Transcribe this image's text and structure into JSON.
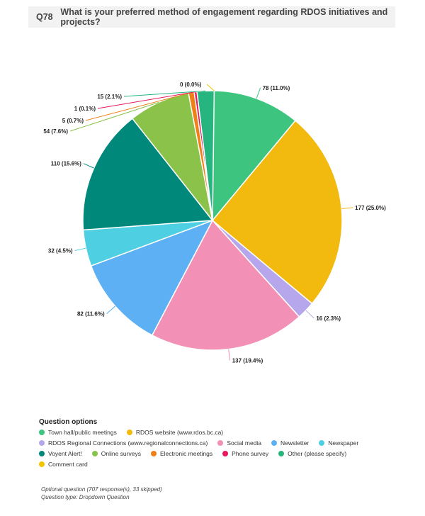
{
  "question": {
    "number": "Q78",
    "text": "What is your preferred method of engagement regarding RDOS initiatives and projects?"
  },
  "chart_data": {
    "type": "pie",
    "title": "What is your preferred method of engagement regarding RDOS initiatives and projects?",
    "slices": [
      {
        "name": "Town hall/public meetings",
        "value": 78,
        "label": "78 (11.0%)",
        "color": "#3dc47e"
      },
      {
        "name": "RDOS website (www.rdos.bc.ca)",
        "value": 177,
        "label": "177 (25.0%)",
        "color": "#f2b90f"
      },
      {
        "name": "RDOS Regional Connections (www.regionalconnections.ca)",
        "value": 16,
        "label": "16 (2.3%)",
        "color": "#b6a6ec"
      },
      {
        "name": "Social media",
        "value": 137,
        "label": "137 (19.4%)",
        "color": "#f291b5"
      },
      {
        "name": "Newsletter",
        "value": 82,
        "label": "82 (11.6%)",
        "color": "#5cb0f3"
      },
      {
        "name": "Newspaper",
        "value": 32,
        "label": "32 (4.5%)",
        "color": "#4fd0e2"
      },
      {
        "name": "Voyent Alert!",
        "value": 110,
        "label": "110 (15.6%)",
        "color": "#00897b"
      },
      {
        "name": "Online surveys",
        "value": 54,
        "label": "54 (7.6%)",
        "color": "#8bc34a"
      },
      {
        "name": "Electronic meetings",
        "value": 5,
        "label": "5 (0.7%)",
        "color": "#f07f16"
      },
      {
        "name": "Phone survey",
        "value": 1,
        "label": "1 (0.1%)",
        "color": "#e8175d"
      },
      {
        "name": "Other (please specify)",
        "value": 15,
        "label": "15 (2.1%)",
        "color": "#26b57e"
      },
      {
        "name": "Comment card",
        "value": 0,
        "label": "0 (0.0%)",
        "color": "#f5c400"
      }
    ]
  },
  "legend": {
    "title": "Question options",
    "items": [
      {
        "label": "Town hall/public meetings",
        "color": "#3dc47e"
      },
      {
        "label": "RDOS website (www.rdos.bc.ca)",
        "color": "#f2b90f"
      },
      {
        "label": "RDOS Regional Connections (www.regionalconnections.ca)",
        "color": "#b6a6ec"
      },
      {
        "label": "Social media",
        "color": "#f291b5"
      },
      {
        "label": "Newsletter",
        "color": "#5cb0f3"
      },
      {
        "label": "Newspaper",
        "color": "#4fd0e2"
      },
      {
        "label": "Voyent Alert!",
        "color": "#00897b"
      },
      {
        "label": "Online surveys",
        "color": "#8bc34a"
      },
      {
        "label": "Electronic meetings",
        "color": "#f07f16"
      },
      {
        "label": "Phone survey",
        "color": "#e8175d"
      },
      {
        "label": "Other (please specify)",
        "color": "#26b57e"
      },
      {
        "label": "Comment card",
        "color": "#f5c400"
      }
    ]
  },
  "footer": {
    "responses": "Optional question (707 response(s), 33 skipped)",
    "type": "Question type: Dropdown Question"
  }
}
